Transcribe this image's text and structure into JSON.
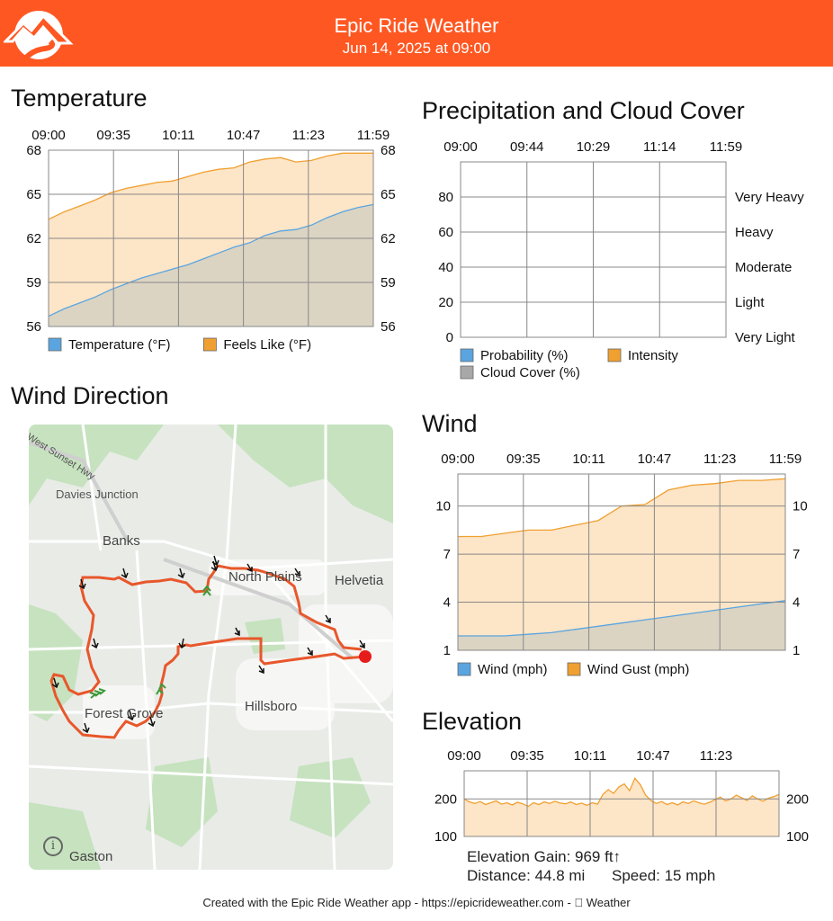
{
  "header": {
    "title": "Epic Ride Weather",
    "subtitle": "Jun 14, 2025 at 09:00",
    "background": "#ff5722"
  },
  "temperature": {
    "title": "Temperature",
    "chart_data": {
      "type": "area",
      "x_ticks": [
        "09:00",
        "09:35",
        "10:11",
        "10:47",
        "11:23",
        "11:59"
      ],
      "y_ticks": [
        "68",
        "65",
        "62",
        "59",
        "56"
      ],
      "ylim": [
        56,
        68
      ],
      "grid": true,
      "legend_position": "bottom",
      "series": [
        {
          "name": "Temperature (°F)",
          "color": "#5aa5e0",
          "values": [
            56.7,
            57.2,
            57.6,
            58.0,
            58.5,
            58.9,
            59.3,
            59.6,
            59.9,
            60.2,
            60.6,
            61.0,
            61.4,
            61.7,
            62.2,
            62.5,
            62.6,
            62.9,
            63.4,
            63.8,
            64.1,
            64.3
          ]
        },
        {
          "name": "Feels Like (°F)",
          "color": "#f0a030",
          "values": [
            63.3,
            63.8,
            64.2,
            64.6,
            65.1,
            65.4,
            65.6,
            65.8,
            65.9,
            66.2,
            66.5,
            66.7,
            66.8,
            67.2,
            67.4,
            67.5,
            67.2,
            67.3,
            67.6,
            67.8,
            67.8,
            67.8
          ]
        }
      ]
    }
  },
  "precipitation": {
    "title": "Precipitation and Cloud Cover",
    "chart_data": {
      "type": "area",
      "x_ticks": [
        "09:00",
        "09:44",
        "10:29",
        "11:14",
        "11:59"
      ],
      "y_ticks": [
        "80",
        "60",
        "40",
        "20",
        "0"
      ],
      "ylim": [
        0,
        100
      ],
      "right_ticks": [
        "Very Heavy",
        "Heavy",
        "Moderate",
        "Light",
        "Very Light"
      ],
      "grid": true,
      "legend_position": "bottom",
      "series": [
        {
          "name": "Probability (%)",
          "color": "#5aa5e0",
          "values": []
        },
        {
          "name": "Intensity",
          "color": "#f0a030",
          "values": []
        },
        {
          "name": "Cloud Cover (%)",
          "color": "#a8a8a8",
          "values": []
        }
      ]
    }
  },
  "wind_direction": {
    "title": "Wind Direction",
    "map_labels": {
      "highway": "West Sunset Hwy",
      "davies": "Davies Junction",
      "banks": "Banks",
      "north_plains": "North Plains",
      "helvetia": "Helvetia",
      "hillsboro": "Hillsboro",
      "forest_grove": "Forest Grove",
      "gaston": "Gaston"
    },
    "info_icon": "i",
    "route_color": "#e8572b",
    "end_marker_color": "#e81b1b"
  },
  "wind": {
    "title": "Wind",
    "chart_data": {
      "type": "area",
      "x_ticks": [
        "09:00",
        "09:35",
        "10:11",
        "10:47",
        "11:23",
        "11:59"
      ],
      "y_ticks": [
        "10",
        "7",
        "4",
        "1"
      ],
      "ylim": [
        1,
        12
      ],
      "grid": true,
      "legend_position": "bottom",
      "series": [
        {
          "name": "Wind (mph)",
          "color": "#5aa5e0",
          "values": [
            1.9,
            1.9,
            1.9,
            2.0,
            2.1,
            2.3,
            2.5,
            2.7,
            2.9,
            3.1,
            3.3,
            3.5,
            3.7,
            3.9,
            4.1
          ]
        },
        {
          "name": "Wind Gust (mph)",
          "color": "#f0a030",
          "values": [
            8.1,
            8.1,
            8.3,
            8.5,
            8.5,
            8.8,
            9.1,
            10.0,
            10.1,
            11.0,
            11.3,
            11.4,
            11.6,
            11.6,
            11.7
          ]
        }
      ]
    }
  },
  "elevation": {
    "title": "Elevation",
    "chart_data": {
      "type": "area",
      "x_ticks": [
        "09:00",
        "09:35",
        "10:11",
        "10:47",
        "11:23"
      ],
      "y_ticks": [
        "200",
        "100"
      ],
      "ylim": [
        100,
        275
      ],
      "grid": true,
      "color": "#f0a030",
      "values": [
        200,
        192,
        188,
        193,
        185,
        190,
        195,
        186,
        190,
        184,
        191,
        187,
        180,
        190,
        185,
        192,
        188,
        194,
        189,
        187,
        192,
        185,
        189,
        183,
        190,
        186,
        212,
        225,
        215,
        232,
        240,
        222,
        255,
        238,
        210,
        196,
        188,
        193,
        185,
        190,
        184,
        192,
        188,
        195,
        190,
        186,
        191,
        198,
        205,
        195,
        200,
        210,
        203,
        196,
        208,
        200,
        194,
        202,
        206,
        212
      ]
    },
    "gain": "Elevation Gain: 969 ft↑",
    "distance": "Distance: 44.8 mi",
    "speed": "Speed: 15 mph"
  },
  "footer": {
    "text": "Created with the Epic Ride Weather app - https://epicrideweather.com -  Weather"
  }
}
